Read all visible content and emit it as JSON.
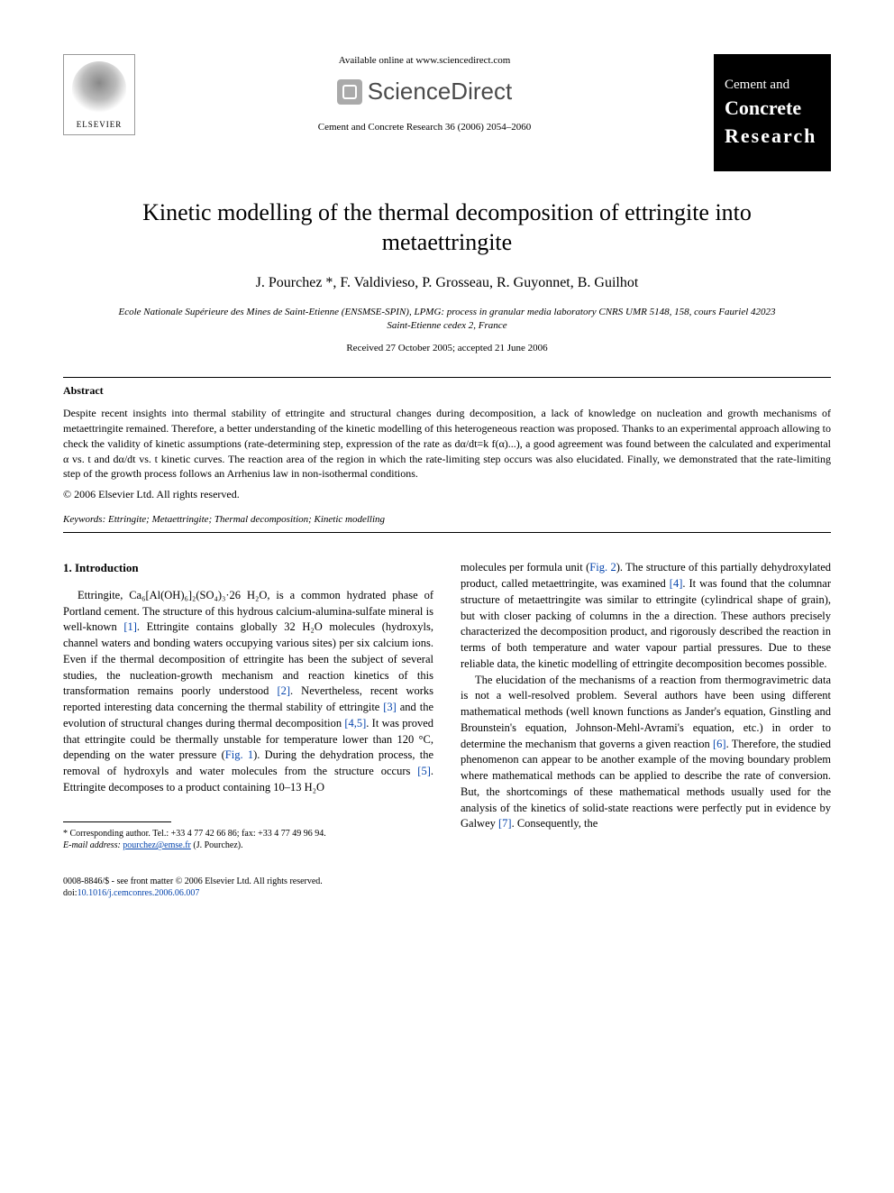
{
  "header": {
    "available_online": "Available online at www.sciencedirect.com",
    "sciencedirect": "ScienceDirect",
    "journal_ref": "Cement and Concrete Research 36 (2006) 2054–2060",
    "elsevier_label": "ELSEVIER",
    "journal_logo": {
      "line1": "Cement and",
      "line2": "Concrete",
      "line3": "Research"
    }
  },
  "title": "Kinetic modelling of the thermal decomposition of ettringite into metaettringite",
  "authors": "J. Pourchez *, F. Valdivieso, P. Grosseau, R. Guyonnet, B. Guilhot",
  "affiliation": "Ecole Nationale Supérieure des Mines de Saint-Etienne (ENSMSE-SPIN), LPMG: process in granular media laboratory CNRS UMR 5148, 158, cours Fauriel 42023 Saint-Etienne cedex 2, France",
  "dates": "Received 27 October 2005; accepted 21 June 2006",
  "abstract": {
    "heading": "Abstract",
    "text": "Despite recent insights into thermal stability of ettringite and structural changes during decomposition, a lack of knowledge on nucleation and growth mechanisms of metaettringite remained. Therefore, a better understanding of the kinetic modelling of this heterogeneous reaction was proposed. Thanks to an experimental approach allowing to check the validity of kinetic assumptions (rate-determining step, expression of the rate as dα/dt=k f(α)...), a good agreement was found between the calculated and experimental α vs. t and dα/dt vs. t kinetic curves. The reaction area of the region in which the rate-limiting step occurs was also elucidated. Finally, we demonstrated that the rate-limiting step of the growth process follows an Arrhenius law in non-isothermal conditions.",
    "copyright": "© 2006 Elsevier Ltd. All rights reserved."
  },
  "keywords": {
    "label": "Keywords:",
    "text": "Ettringite; Metaettringite; Thermal decomposition; Kinetic modelling"
  },
  "section1": {
    "heading": "1. Introduction",
    "col1_p1_a": "Ettringite, Ca₆[Al(OH)₆]₂(SO₄)₃·26 H₂O, is a common hydrated phase of Portland cement. The structure of this hydrous calcium-alumina-sulfate mineral is well-known ",
    "ref1": "[1]",
    "col1_p1_b": ". Ettringite contains globally 32 H₂O molecules (hydroxyls, channel waters and bonding waters occupying various sites) per six calcium ions. Even if the thermal decomposition of ettringite has been the subject of several studies, the nucleation-growth mechanism and reaction kinetics of this transformation remains poorly understood ",
    "ref2": "[2]",
    "col1_p1_c": ". Nevertheless, recent works reported interesting data concerning the thermal stability of ettringite ",
    "ref3": "[3]",
    "col1_p1_d": " and the evolution of structural changes during thermal decomposition ",
    "ref45": "[4,5]",
    "col1_p1_e": ". It was proved that ettringite could be thermally unstable for temperature lower than 120 °C, depending on the water pressure (",
    "fig1": "Fig. 1",
    "col1_p1_f": "). During the dehydration process, the removal of hydroxyls and water molecules from the structure occurs ",
    "ref5": "[5]",
    "col1_p1_g": ". Ettringite decomposes to a product containing 10–13 H₂O",
    "col2_p1_a": "molecules per formula unit (",
    "fig2": "Fig. 2",
    "col2_p1_b": "). The structure of this partially dehydroxylated product, called metaettringite, was examined ",
    "ref4": "[4]",
    "col2_p1_c": ". It was found that the columnar structure of metaettringite was similar to ettringite (cylindrical shape of grain), but with closer packing of columns in the a direction. These authors precisely characterized the decomposition product, and rigorously described the reaction in terms of both temperature and water vapour partial pressures. Due to these reliable data, the kinetic modelling of ettringite decomposition becomes possible.",
    "col2_p2_a": "The elucidation of the mechanisms of a reaction from thermogravimetric data is not a well-resolved problem. Several authors have been using different mathematical methods (well known functions as Jander's equation, Ginstling and Brounstein's equation, Johnson-Mehl-Avrami's equation, etc.) in order to determine the mechanism that governs a given reaction ",
    "ref6": "[6]",
    "col2_p2_b": ". Therefore, the studied phenomenon can appear to be another example of the moving boundary problem where mathematical methods can be applied to describe the rate of conversion. But, the shortcomings of these mathematical methods usually used for the analysis of the kinetics of solid-state reactions were perfectly put in evidence by Galwey ",
    "ref7": "[7]",
    "col2_p2_c": ". Consequently, the"
  },
  "footnote": {
    "corr": "* Corresponding author. Tel.: +33 4 77 42 66 86; fax: +33 4 77 49 96 94.",
    "email_label": "E-mail address:",
    "email": "pourchez@emse.fr",
    "email_tail": "(J. Pourchez)."
  },
  "bottom": {
    "issn": "0008-8846/$ - see front matter © 2006 Elsevier Ltd. All rights reserved.",
    "doi_label": "doi:",
    "doi": "10.1016/j.cemconres.2006.06.007"
  },
  "colors": {
    "link": "#0645ad",
    "text": "#000000",
    "bg": "#ffffff"
  }
}
